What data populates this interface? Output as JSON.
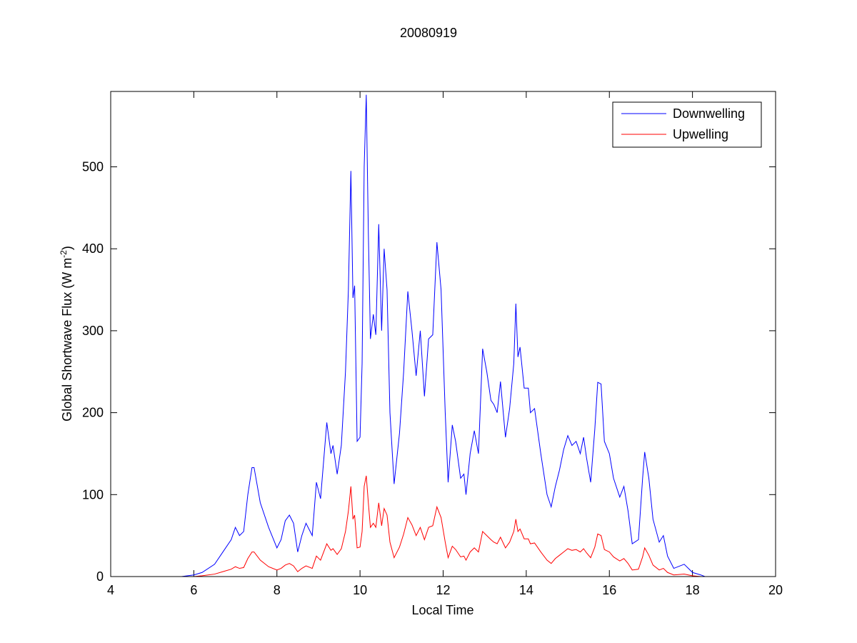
{
  "chart_data": {
    "type": "line",
    "title": "20080919",
    "xlabel": "Local Time",
    "ylabel": {
      "text": "Global Shortwave Flux (W m",
      "sup": "-2",
      "close": ")"
    },
    "xlim": [
      4,
      20
    ],
    "xticks": [
      4,
      6,
      8,
      10,
      12,
      14,
      16,
      18,
      20
    ],
    "ylim": [
      0,
      592
    ],
    "yticks": [
      0,
      100,
      200,
      300,
      400,
      500
    ],
    "legend": "northeast",
    "x": [
      4.7,
      5.2,
      5.5,
      5.7,
      6.0,
      6.2,
      6.5,
      6.7,
      6.9,
      7.0,
      7.1,
      7.2,
      7.3,
      7.4,
      7.45,
      7.6,
      7.8,
      8.0,
      8.1,
      8.2,
      8.3,
      8.4,
      8.5,
      8.6,
      8.7,
      8.85,
      8.95,
      9.05,
      9.2,
      9.3,
      9.35,
      9.45,
      9.55,
      9.65,
      9.72,
      9.78,
      9.83,
      9.87,
      9.93,
      10.0,
      10.05,
      10.1,
      10.15,
      10.2,
      10.25,
      10.32,
      10.38,
      10.45,
      10.52,
      10.58,
      10.65,
      10.72,
      10.82,
      10.95,
      11.05,
      11.15,
      11.25,
      11.35,
      11.45,
      11.55,
      11.65,
      11.75,
      11.85,
      11.95,
      12.05,
      12.12,
      12.22,
      12.3,
      12.42,
      12.5,
      12.55,
      12.65,
      12.75,
      12.85,
      12.95,
      13.05,
      13.15,
      13.22,
      13.3,
      13.38,
      13.5,
      13.6,
      13.7,
      13.75,
      13.8,
      13.85,
      13.95,
      14.05,
      14.1,
      14.2,
      14.35,
      14.5,
      14.6,
      14.7,
      14.8,
      14.9,
      15.0,
      15.1,
      15.2,
      15.3,
      15.38,
      15.45,
      15.55,
      15.65,
      15.72,
      15.8,
      15.88,
      16.0,
      16.1,
      16.25,
      16.35,
      16.45,
      16.55,
      16.7,
      16.8,
      16.85,
      16.95,
      17.05,
      17.2,
      17.3,
      17.4,
      17.55,
      17.8,
      17.9,
      18.0,
      18.2,
      18.3
    ],
    "series": [
      {
        "name": "Downwelling",
        "color": "#0000ff",
        "values": [
          0,
          0,
          null,
          0,
          2,
          5,
          15,
          30,
          45,
          60,
          50,
          55,
          100,
          133,
          133,
          90,
          60,
          35,
          45,
          68,
          75,
          65,
          30,
          50,
          65,
          50,
          115,
          95,
          188,
          150,
          160,
          125,
          160,
          250,
          350,
          495,
          340,
          355,
          165,
          170,
          260,
          500,
          588,
          420,
          290,
          320,
          295,
          430,
          300,
          400,
          350,
          200,
          113,
          175,
          250,
          348,
          300,
          245,
          300,
          220,
          290,
          295,
          408,
          350,
          200,
          115,
          185,
          165,
          120,
          125,
          100,
          150,
          178,
          150,
          278,
          250,
          215,
          210,
          200,
          238,
          170,
          205,
          260,
          333,
          268,
          280,
          230,
          230,
          200,
          205,
          150,
          100,
          85,
          110,
          130,
          155,
          172,
          160,
          165,
          150,
          170,
          145,
          115,
          180,
          237,
          235,
          165,
          150,
          120,
          97,
          110,
          80,
          40,
          45,
          120,
          152,
          120,
          70,
          42,
          50,
          25,
          10,
          15,
          10,
          5,
          2,
          0
        ]
      },
      {
        "name": "Upwelling",
        "color": "#ff0000",
        "values": [
          0,
          0,
          null,
          0,
          0,
          1,
          3,
          6,
          9,
          12,
          10,
          11,
          22,
          30,
          30,
          20,
          12,
          8,
          10,
          14,
          16,
          13,
          6,
          10,
          13,
          10,
          25,
          20,
          40,
          32,
          34,
          27,
          34,
          55,
          80,
          110,
          70,
          75,
          35,
          36,
          55,
          110,
          123,
          90,
          60,
          65,
          60,
          90,
          62,
          83,
          75,
          42,
          23,
          36,
          52,
          72,
          63,
          50,
          60,
          45,
          60,
          62,
          85,
          72,
          42,
          23,
          37,
          33,
          24,
          25,
          20,
          30,
          35,
          30,
          55,
          50,
          45,
          42,
          40,
          48,
          35,
          42,
          55,
          70,
          55,
          58,
          46,
          46,
          40,
          41,
          30,
          20,
          16,
          22,
          26,
          30,
          34,
          32,
          33,
          30,
          34,
          29,
          23,
          36,
          52,
          50,
          33,
          30,
          24,
          19,
          22,
          16,
          8,
          9,
          24,
          35,
          26,
          14,
          8,
          10,
          5,
          2,
          3,
          2,
          1,
          0,
          0
        ]
      }
    ]
  }
}
